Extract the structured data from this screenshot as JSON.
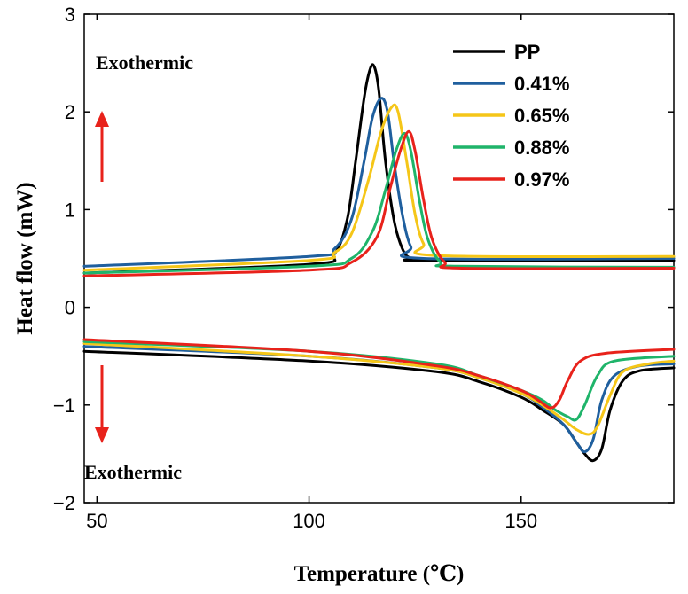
{
  "chart_data": {
    "type": "line",
    "xlabel": "Temperature (℃)",
    "ylabel": "Heat flow (mW)",
    "xlim": [
      47,
      186
    ],
    "ylim": [
      -2,
      3
    ],
    "xticks": [
      50,
      100,
      150
    ],
    "yticks": [
      -2,
      -1,
      0,
      1,
      2,
      3
    ],
    "legend_position": "top-right",
    "annotations": [
      {
        "text": "Exothermic",
        "arrow": "up",
        "color": "#e8221b"
      },
      {
        "text": "Exothermic",
        "arrow": "down",
        "color": "#e8221b"
      }
    ],
    "series": [
      {
        "name": "PP",
        "color": "#000000",
        "cooling": [
          [
            47,
            0.35
          ],
          [
            100,
            0.44
          ],
          [
            106,
            0.55
          ],
          [
            109,
            0.9
          ],
          [
            111,
            1.5
          ],
          [
            113,
            2.15
          ],
          [
            114.5,
            2.45
          ],
          [
            115.5,
            2.45
          ],
          [
            116.5,
            2.2
          ],
          [
            118,
            1.5
          ],
          [
            120,
            0.9
          ],
          [
            122,
            0.6
          ],
          [
            124,
            0.5
          ],
          [
            128,
            0.48
          ],
          [
            186,
            0.48
          ]
        ],
        "heating": [
          [
            47,
            -0.45
          ],
          [
            100,
            -0.55
          ],
          [
            130,
            -0.66
          ],
          [
            140,
            -0.76
          ],
          [
            150,
            -0.92
          ],
          [
            155,
            -1.05
          ],
          [
            160,
            -1.2
          ],
          [
            163,
            -1.38
          ],
          [
            165,
            -1.5
          ],
          [
            167,
            -1.57
          ],
          [
            169,
            -1.45
          ],
          [
            171,
            -1.05
          ],
          [
            174,
            -0.75
          ],
          [
            178,
            -0.65
          ],
          [
            186,
            -0.62
          ]
        ]
      },
      {
        "name": "0.41%",
        "color": "#1f5f9e",
        "cooling": [
          [
            47,
            0.42
          ],
          [
            100,
            0.52
          ],
          [
            106,
            0.6
          ],
          [
            110,
            0.9
          ],
          [
            113,
            1.5
          ],
          [
            115,
            1.95
          ],
          [
            117,
            2.14
          ],
          [
            118.5,
            2.0
          ],
          [
            120,
            1.5
          ],
          [
            122,
            0.95
          ],
          [
            124,
            0.62
          ],
          [
            127,
            0.5
          ],
          [
            186,
            0.5
          ]
        ],
        "heating": [
          [
            47,
            -0.4
          ],
          [
            100,
            -0.5
          ],
          [
            130,
            -0.62
          ],
          [
            140,
            -0.72
          ],
          [
            150,
            -0.88
          ],
          [
            155,
            -1.02
          ],
          [
            160,
            -1.2
          ],
          [
            163,
            -1.38
          ],
          [
            165,
            -1.48
          ],
          [
            167,
            -1.35
          ],
          [
            169,
            -0.95
          ],
          [
            172,
            -0.7
          ],
          [
            178,
            -0.6
          ],
          [
            186,
            -0.58
          ]
        ]
      },
      {
        "name": "0.65%",
        "color": "#f5c618",
        "cooling": [
          [
            47,
            0.38
          ],
          [
            100,
            0.48
          ],
          [
            106,
            0.56
          ],
          [
            110,
            0.75
          ],
          [
            114,
            1.3
          ],
          [
            117,
            1.8
          ],
          [
            119.5,
            2.05
          ],
          [
            121,
            2.0
          ],
          [
            123,
            1.5
          ],
          [
            125,
            0.95
          ],
          [
            127,
            0.65
          ],
          [
            130,
            0.53
          ],
          [
            186,
            0.52
          ]
        ],
        "heating": [
          [
            47,
            -0.37
          ],
          [
            100,
            -0.5
          ],
          [
            130,
            -0.62
          ],
          [
            140,
            -0.72
          ],
          [
            150,
            -0.88
          ],
          [
            155,
            -1.0
          ],
          [
            160,
            -1.15
          ],
          [
            163,
            -1.25
          ],
          [
            166,
            -1.3
          ],
          [
            168,
            -1.22
          ],
          [
            171,
            -0.9
          ],
          [
            174,
            -0.66
          ],
          [
            180,
            -0.58
          ],
          [
            186,
            -0.55
          ]
        ]
      },
      {
        "name": "0.88%",
        "color": "#1fb46a",
        "cooling": [
          [
            47,
            0.35
          ],
          [
            100,
            0.42
          ],
          [
            110,
            0.5
          ],
          [
            115,
            0.78
          ],
          [
            118,
            1.2
          ],
          [
            120.5,
            1.6
          ],
          [
            122.5,
            1.78
          ],
          [
            124,
            1.6
          ],
          [
            126,
            1.1
          ],
          [
            128,
            0.7
          ],
          [
            131,
            0.46
          ],
          [
            135,
            0.42
          ],
          [
            186,
            0.41
          ]
        ],
        "heating": [
          [
            47,
            -0.35
          ],
          [
            100,
            -0.45
          ],
          [
            130,
            -0.58
          ],
          [
            140,
            -0.7
          ],
          [
            150,
            -0.85
          ],
          [
            155,
            -0.95
          ],
          [
            158,
            -1.05
          ],
          [
            161,
            -1.12
          ],
          [
            163,
            -1.15
          ],
          [
            165,
            -1.0
          ],
          [
            168,
            -0.7
          ],
          [
            172,
            -0.55
          ],
          [
            186,
            -0.5
          ]
        ]
      },
      {
        "name": "0.97%",
        "color": "#e8221b",
        "cooling": [
          [
            47,
            0.32
          ],
          [
            100,
            0.38
          ],
          [
            110,
            0.46
          ],
          [
            116,
            0.72
          ],
          [
            119,
            1.2
          ],
          [
            121.5,
            1.6
          ],
          [
            123.5,
            1.8
          ],
          [
            125,
            1.6
          ],
          [
            127,
            1.1
          ],
          [
            129,
            0.7
          ],
          [
            132,
            0.46
          ],
          [
            136,
            0.4
          ],
          [
            186,
            0.4
          ]
        ],
        "heating": [
          [
            47,
            -0.33
          ],
          [
            100,
            -0.45
          ],
          [
            130,
            -0.6
          ],
          [
            140,
            -0.7
          ],
          [
            150,
            -0.85
          ],
          [
            154,
            -0.95
          ],
          [
            157,
            -1.03
          ],
          [
            159,
            -0.95
          ],
          [
            161,
            -0.75
          ],
          [
            164,
            -0.55
          ],
          [
            170,
            -0.47
          ],
          [
            186,
            -0.43
          ]
        ]
      }
    ]
  }
}
